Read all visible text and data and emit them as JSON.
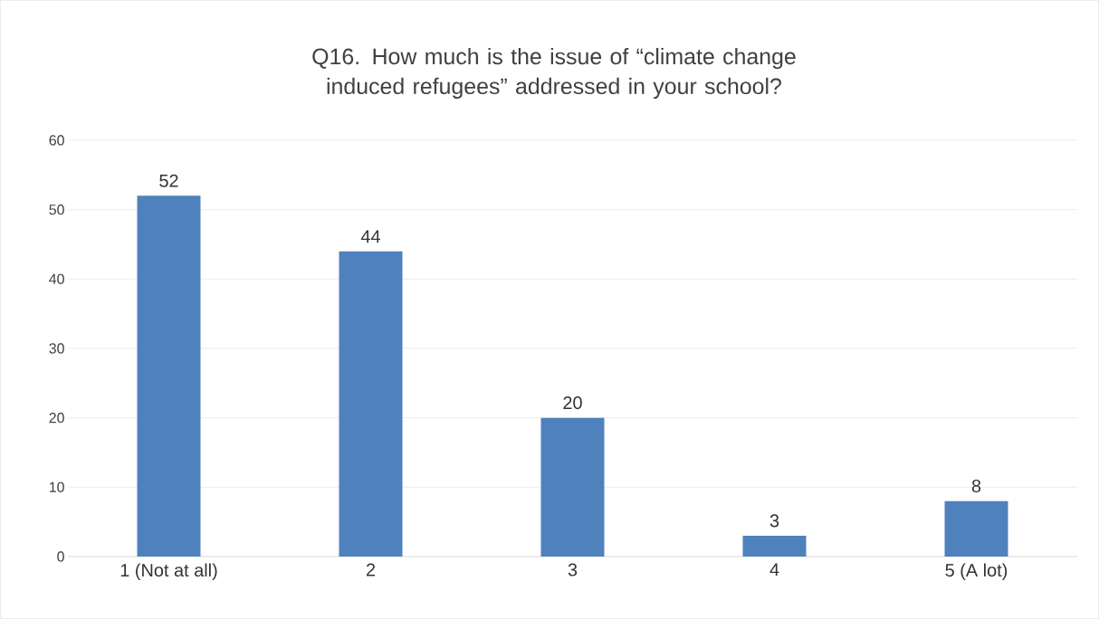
{
  "chart_data": {
    "type": "bar",
    "title": "Q16. How much is the issue of “climate change induced refugees” addressed in your school?",
    "categories": [
      "1 (Not at all)",
      "2",
      "3",
      "4",
      "5 (A lot)"
    ],
    "values": [
      52,
      44,
      20,
      3,
      8
    ],
    "color": "#4f81bd",
    "ylim": [
      0,
      60
    ],
    "yticks": [
      0,
      10,
      20,
      30,
      40,
      50,
      60
    ],
    "grid": "y",
    "data_labels": true
  }
}
